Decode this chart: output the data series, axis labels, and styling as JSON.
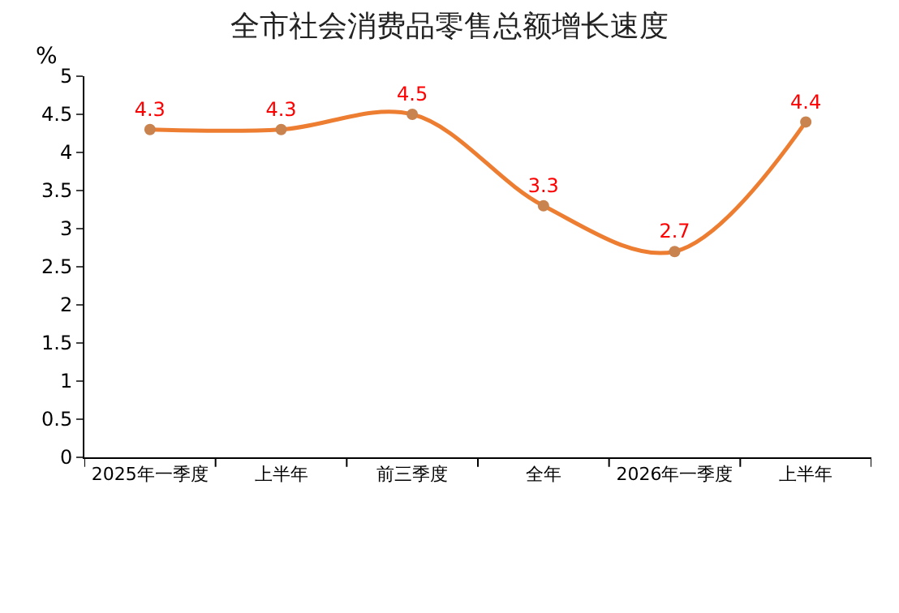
{
  "chart_data": {
    "type": "line",
    "title": "全市社会消费品零售总额增长速度",
    "ylabel": "%",
    "categories": [
      "2025年一季度",
      "上半年",
      "前三季度",
      "全年",
      "2026年一季度",
      "上半年"
    ],
    "series": [
      {
        "color": "#ed7d31",
        "values": [
          4.3,
          4.3,
          4.5,
          3.3,
          2.7,
          4.4
        ]
      }
    ],
    "ylim": [
      0,
      5
    ],
    "yticks": [
      0,
      0.5,
      1,
      1.5,
      2,
      2.5,
      3,
      3.5,
      4,
      4.5,
      5
    ],
    "legend": false,
    "marker": "circle",
    "line_style": "solid",
    "data_labels": true
  }
}
